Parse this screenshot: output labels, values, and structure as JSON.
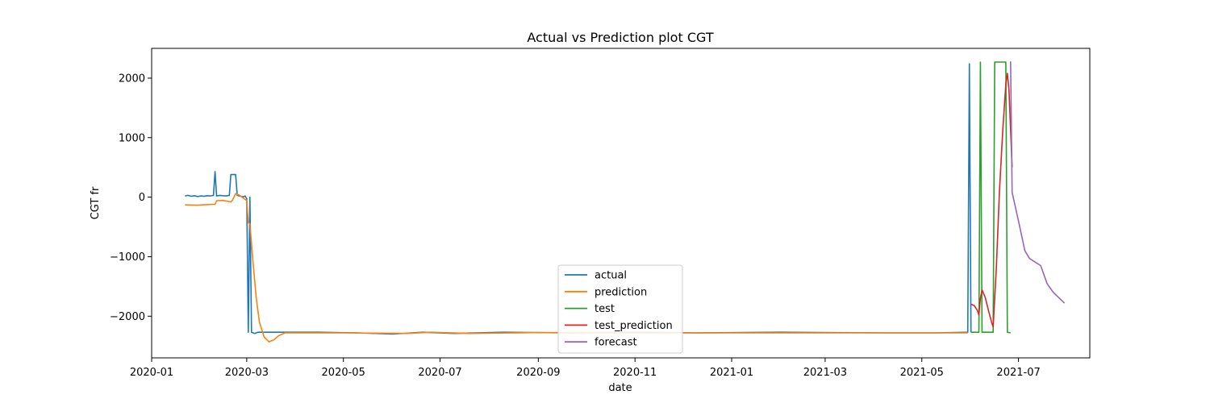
{
  "chart_data": {
    "type": "line",
    "title": "Actual vs Prediction plot CGT",
    "xlabel": "date",
    "ylabel": "CGT fr",
    "x_axis_type": "date",
    "xlim": [
      "2020-01-01",
      "2021-08-15"
    ],
    "ylim": [
      -2700,
      2500
    ],
    "x_ticks": [
      "2020-01",
      "2020-03",
      "2020-05",
      "2020-07",
      "2020-09",
      "2020-11",
      "2021-01",
      "2021-03",
      "2021-05",
      "2021-07"
    ],
    "y_ticks": [
      2000,
      1000,
      0,
      -1000,
      -2000
    ],
    "y_tick_labels": [
      "2000",
      "1000",
      "0",
      "−1000",
      "−2000"
    ],
    "grid": false,
    "legend_position": "lower-center",
    "series": [
      {
        "name": "actual",
        "color": "#1f77b4",
        "points": [
          [
            "2020-01-22",
            20
          ],
          [
            "2020-01-24",
            30
          ],
          [
            "2020-01-26",
            15
          ],
          [
            "2020-01-28",
            25
          ],
          [
            "2020-01-30",
            10
          ],
          [
            "2020-02-01",
            20
          ],
          [
            "2020-02-03",
            15
          ],
          [
            "2020-02-05",
            25
          ],
          [
            "2020-02-07",
            20
          ],
          [
            "2020-02-09",
            30
          ],
          [
            "2020-02-10",
            430
          ],
          [
            "2020-02-11",
            20
          ],
          [
            "2020-02-13",
            30
          ],
          [
            "2020-02-15",
            25
          ],
          [
            "2020-02-17",
            20
          ],
          [
            "2020-02-19",
            30
          ],
          [
            "2020-02-20",
            380
          ],
          [
            "2020-02-23",
            380
          ],
          [
            "2020-02-24",
            30
          ],
          [
            "2020-02-26",
            15
          ],
          [
            "2020-02-28",
            5
          ],
          [
            "2020-02-29",
            20
          ],
          [
            "2020-03-01",
            -30
          ],
          [
            "2020-03-02",
            -2270
          ],
          [
            "2020-03-03",
            0
          ],
          [
            "2020-03-04",
            -2270
          ],
          [
            "2020-03-06",
            -2290
          ],
          [
            "2020-03-08",
            -2270
          ],
          [
            "2020-04-15",
            -2270
          ],
          [
            "2020-05-10",
            -2280
          ],
          [
            "2020-06-01",
            -2300
          ],
          [
            "2020-06-20",
            -2270
          ],
          [
            "2020-07-10",
            -2290
          ],
          [
            "2020-08-10",
            -2270
          ],
          [
            "2020-09-20",
            -2280
          ],
          [
            "2020-11-01",
            -2270
          ],
          [
            "2020-12-10",
            -2280
          ],
          [
            "2021-02-01",
            -2270
          ],
          [
            "2021-04-10",
            -2280
          ],
          [
            "2021-05-10",
            -2280
          ],
          [
            "2021-05-30",
            -2270
          ],
          [
            "2021-05-31",
            2240
          ],
          [
            "2021-06-01",
            -2270
          ]
        ]
      },
      {
        "name": "prediction",
        "color": "#ff7f0e",
        "points": [
          [
            "2020-01-22",
            -130
          ],
          [
            "2020-01-30",
            -135
          ],
          [
            "2020-02-05",
            -125
          ],
          [
            "2020-02-10",
            -120
          ],
          [
            "2020-02-11",
            -60
          ],
          [
            "2020-02-15",
            -55
          ],
          [
            "2020-02-20",
            -80
          ],
          [
            "2020-02-21",
            -50
          ],
          [
            "2020-02-23",
            60
          ],
          [
            "2020-02-25",
            40
          ],
          [
            "2020-02-27",
            0
          ],
          [
            "2020-03-01",
            -60
          ],
          [
            "2020-03-02",
            -430
          ],
          [
            "2020-03-03",
            -450
          ],
          [
            "2020-03-05",
            -1100
          ],
          [
            "2020-03-07",
            -1700
          ],
          [
            "2020-03-09",
            -2100
          ],
          [
            "2020-03-12",
            -2350
          ],
          [
            "2020-03-15",
            -2430
          ],
          [
            "2020-03-18",
            -2400
          ],
          [
            "2020-03-21",
            -2330
          ],
          [
            "2020-03-25",
            -2280
          ],
          [
            "2020-05-01",
            -2280
          ],
          [
            "2020-06-10",
            -2290
          ],
          [
            "2020-06-25",
            -2270
          ],
          [
            "2020-07-20",
            -2290
          ],
          [
            "2020-09-01",
            -2275
          ],
          [
            "2020-11-01",
            -2280
          ],
          [
            "2021-01-01",
            -2280
          ],
          [
            "2021-03-15",
            -2280
          ],
          [
            "2021-05-30",
            -2280
          ]
        ]
      },
      {
        "name": "test",
        "color": "#2ca02c",
        "points": [
          [
            "2021-06-01",
            -2270
          ],
          [
            "2021-06-06",
            -2270
          ],
          [
            "2021-06-07",
            2270
          ],
          [
            "2021-06-08",
            -2270
          ],
          [
            "2021-06-15",
            -2270
          ],
          [
            "2021-06-16",
            2270
          ],
          [
            "2021-06-23",
            2270
          ],
          [
            "2021-06-24",
            -2270
          ],
          [
            "2021-06-26",
            -2280
          ]
        ]
      },
      {
        "name": "test_prediction",
        "color": "#d62728",
        "points": [
          [
            "2021-06-01",
            -1800
          ],
          [
            "2021-06-03",
            -1820
          ],
          [
            "2021-06-05",
            -1900
          ],
          [
            "2021-06-06",
            -1980
          ],
          [
            "2021-06-07",
            -1700
          ],
          [
            "2021-06-08",
            -1560
          ],
          [
            "2021-06-10",
            -1680
          ],
          [
            "2021-06-12",
            -1900
          ],
          [
            "2021-06-14",
            -2100
          ],
          [
            "2021-06-15",
            -2180
          ],
          [
            "2021-06-17",
            -1200
          ],
          [
            "2021-06-19",
            100
          ],
          [
            "2021-06-21",
            1100
          ],
          [
            "2021-06-23",
            1900
          ],
          [
            "2021-06-24",
            2080
          ],
          [
            "2021-06-25",
            1800
          ],
          [
            "2021-06-27",
            500
          ]
        ]
      },
      {
        "name": "forecast",
        "color": "#9467bd",
        "points": [
          [
            "2021-06-26",
            2280
          ],
          [
            "2021-06-27",
            80
          ],
          [
            "2021-07-01",
            -400
          ],
          [
            "2021-07-05",
            -900
          ],
          [
            "2021-07-08",
            -1030
          ],
          [
            "2021-07-12",
            -1100
          ],
          [
            "2021-07-15",
            -1150
          ],
          [
            "2021-07-19",
            -1450
          ],
          [
            "2021-07-20",
            -1490
          ],
          [
            "2021-07-23",
            -1600
          ],
          [
            "2021-07-30",
            -1780
          ]
        ]
      }
    ]
  }
}
